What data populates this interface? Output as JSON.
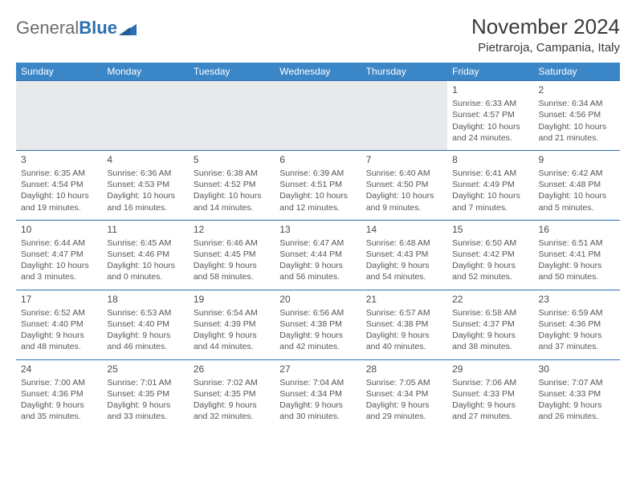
{
  "logo": {
    "word1": "General",
    "word2": "Blue"
  },
  "title": "November 2024",
  "location": "Pietraroja, Campania, Italy",
  "style": {
    "header_bg": "#3b86c7",
    "header_fg": "#ffffff",
    "row_divider": "#2b6fb0",
    "spacer_bg": "#e7e9eb",
    "body_text": "#565656",
    "page_bg": "#ffffff",
    "title_color": "#3a3a3a",
    "font_family": "Arial",
    "daynum_fontsize": 12,
    "cell_fontsize": 10.5,
    "header_fontsize": 12,
    "title_fontsize": 26,
    "location_fontsize": 15
  },
  "columns": [
    "Sunday",
    "Monday",
    "Tuesday",
    "Wednesday",
    "Thursday",
    "Friday",
    "Saturday"
  ],
  "weeks": [
    [
      null,
      null,
      null,
      null,
      null,
      {
        "n": "1",
        "sr": "Sunrise: 6:33 AM",
        "ss": "Sunset: 4:57 PM",
        "d1": "Daylight: 10 hours",
        "d2": "and 24 minutes."
      },
      {
        "n": "2",
        "sr": "Sunrise: 6:34 AM",
        "ss": "Sunset: 4:56 PM",
        "d1": "Daylight: 10 hours",
        "d2": "and 21 minutes."
      }
    ],
    [
      {
        "n": "3",
        "sr": "Sunrise: 6:35 AM",
        "ss": "Sunset: 4:54 PM",
        "d1": "Daylight: 10 hours",
        "d2": "and 19 minutes."
      },
      {
        "n": "4",
        "sr": "Sunrise: 6:36 AM",
        "ss": "Sunset: 4:53 PM",
        "d1": "Daylight: 10 hours",
        "d2": "and 16 minutes."
      },
      {
        "n": "5",
        "sr": "Sunrise: 6:38 AM",
        "ss": "Sunset: 4:52 PM",
        "d1": "Daylight: 10 hours",
        "d2": "and 14 minutes."
      },
      {
        "n": "6",
        "sr": "Sunrise: 6:39 AM",
        "ss": "Sunset: 4:51 PM",
        "d1": "Daylight: 10 hours",
        "d2": "and 12 minutes."
      },
      {
        "n": "7",
        "sr": "Sunrise: 6:40 AM",
        "ss": "Sunset: 4:50 PM",
        "d1": "Daylight: 10 hours",
        "d2": "and 9 minutes."
      },
      {
        "n": "8",
        "sr": "Sunrise: 6:41 AM",
        "ss": "Sunset: 4:49 PM",
        "d1": "Daylight: 10 hours",
        "d2": "and 7 minutes."
      },
      {
        "n": "9",
        "sr": "Sunrise: 6:42 AM",
        "ss": "Sunset: 4:48 PM",
        "d1": "Daylight: 10 hours",
        "d2": "and 5 minutes."
      }
    ],
    [
      {
        "n": "10",
        "sr": "Sunrise: 6:44 AM",
        "ss": "Sunset: 4:47 PM",
        "d1": "Daylight: 10 hours",
        "d2": "and 3 minutes."
      },
      {
        "n": "11",
        "sr": "Sunrise: 6:45 AM",
        "ss": "Sunset: 4:46 PM",
        "d1": "Daylight: 10 hours",
        "d2": "and 0 minutes."
      },
      {
        "n": "12",
        "sr": "Sunrise: 6:46 AM",
        "ss": "Sunset: 4:45 PM",
        "d1": "Daylight: 9 hours",
        "d2": "and 58 minutes."
      },
      {
        "n": "13",
        "sr": "Sunrise: 6:47 AM",
        "ss": "Sunset: 4:44 PM",
        "d1": "Daylight: 9 hours",
        "d2": "and 56 minutes."
      },
      {
        "n": "14",
        "sr": "Sunrise: 6:48 AM",
        "ss": "Sunset: 4:43 PM",
        "d1": "Daylight: 9 hours",
        "d2": "and 54 minutes."
      },
      {
        "n": "15",
        "sr": "Sunrise: 6:50 AM",
        "ss": "Sunset: 4:42 PM",
        "d1": "Daylight: 9 hours",
        "d2": "and 52 minutes."
      },
      {
        "n": "16",
        "sr": "Sunrise: 6:51 AM",
        "ss": "Sunset: 4:41 PM",
        "d1": "Daylight: 9 hours",
        "d2": "and 50 minutes."
      }
    ],
    [
      {
        "n": "17",
        "sr": "Sunrise: 6:52 AM",
        "ss": "Sunset: 4:40 PM",
        "d1": "Daylight: 9 hours",
        "d2": "and 48 minutes."
      },
      {
        "n": "18",
        "sr": "Sunrise: 6:53 AM",
        "ss": "Sunset: 4:40 PM",
        "d1": "Daylight: 9 hours",
        "d2": "and 46 minutes."
      },
      {
        "n": "19",
        "sr": "Sunrise: 6:54 AM",
        "ss": "Sunset: 4:39 PM",
        "d1": "Daylight: 9 hours",
        "d2": "and 44 minutes."
      },
      {
        "n": "20",
        "sr": "Sunrise: 6:56 AM",
        "ss": "Sunset: 4:38 PM",
        "d1": "Daylight: 9 hours",
        "d2": "and 42 minutes."
      },
      {
        "n": "21",
        "sr": "Sunrise: 6:57 AM",
        "ss": "Sunset: 4:38 PM",
        "d1": "Daylight: 9 hours",
        "d2": "and 40 minutes."
      },
      {
        "n": "22",
        "sr": "Sunrise: 6:58 AM",
        "ss": "Sunset: 4:37 PM",
        "d1": "Daylight: 9 hours",
        "d2": "and 38 minutes."
      },
      {
        "n": "23",
        "sr": "Sunrise: 6:59 AM",
        "ss": "Sunset: 4:36 PM",
        "d1": "Daylight: 9 hours",
        "d2": "and 37 minutes."
      }
    ],
    [
      {
        "n": "24",
        "sr": "Sunrise: 7:00 AM",
        "ss": "Sunset: 4:36 PM",
        "d1": "Daylight: 9 hours",
        "d2": "and 35 minutes."
      },
      {
        "n": "25",
        "sr": "Sunrise: 7:01 AM",
        "ss": "Sunset: 4:35 PM",
        "d1": "Daylight: 9 hours",
        "d2": "and 33 minutes."
      },
      {
        "n": "26",
        "sr": "Sunrise: 7:02 AM",
        "ss": "Sunset: 4:35 PM",
        "d1": "Daylight: 9 hours",
        "d2": "and 32 minutes."
      },
      {
        "n": "27",
        "sr": "Sunrise: 7:04 AM",
        "ss": "Sunset: 4:34 PM",
        "d1": "Daylight: 9 hours",
        "d2": "and 30 minutes."
      },
      {
        "n": "28",
        "sr": "Sunrise: 7:05 AM",
        "ss": "Sunset: 4:34 PM",
        "d1": "Daylight: 9 hours",
        "d2": "and 29 minutes."
      },
      {
        "n": "29",
        "sr": "Sunrise: 7:06 AM",
        "ss": "Sunset: 4:33 PM",
        "d1": "Daylight: 9 hours",
        "d2": "and 27 minutes."
      },
      {
        "n": "30",
        "sr": "Sunrise: 7:07 AM",
        "ss": "Sunset: 4:33 PM",
        "d1": "Daylight: 9 hours",
        "d2": "and 26 minutes."
      }
    ]
  ]
}
